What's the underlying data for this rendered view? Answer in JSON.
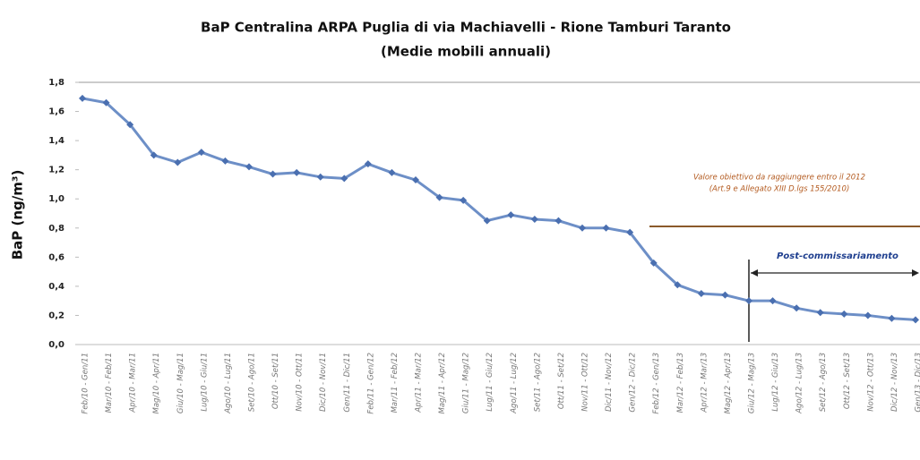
{
  "chart_data": {
    "type": "line",
    "title": "BaP Centralina ARPA Puglia di via Machiavelli - Rione Tamburi Taranto",
    "subtitle": "(Medie mobili annuali)",
    "y_label": "BaP (ng/m³)",
    "categories": [
      "Feb/10 - Gen/11",
      "Mar/10 - Feb/11",
      "Apr/10 - Mar/11",
      "Mag/10 - Apr/11",
      "Giu/10 - Mag/11",
      "Lug/10 - Giu/11",
      "Ago/10 - Lug/11",
      "Set/10 - Ago/11",
      "Ott/10 - Set/11",
      "Nov/10 - Ott/11",
      "Dic/10 - Nov/11",
      "Gen/11 - Dic/11",
      "Feb/11 - Gen/12",
      "Mar/11 - Feb/12",
      "Apr/11 - Mar/12",
      "Mag/11 - Apr/12",
      "Giu/11 - Mag/12",
      "Lug/11 - Giu/12",
      "Ago/11 - Lug/12",
      "Set/11 - Ago/12",
      "Ott/11 - Set/12",
      "Nov/11 - Ott/12",
      "Dic/11 - Nov/12",
      "Gen/12 - Dic/12",
      "Feb/12 - Gen/13",
      "Mar/12 - Feb/13",
      "Apr/12 - Mar/13",
      "Mag/12 - Apr/13",
      "Giu/12 - Mag/13",
      "Lug/12 - Giu/13",
      "Ago/12 - Lug/13",
      "Set/12 - Ago/13",
      "Ott/12 - Set/13",
      "Nov/12 - Ott/13",
      "Dic/12 - Nov/13",
      "Gen/13 - Dic/13"
    ],
    "values": [
      1.69,
      1.66,
      1.51,
      1.3,
      1.25,
      1.32,
      1.26,
      1.22,
      1.17,
      1.18,
      1.15,
      1.14,
      1.24,
      1.18,
      1.13,
      1.01,
      0.99,
      0.85,
      0.89,
      0.86,
      0.85,
      0.8,
      0.8,
      0.77,
      0.56,
      0.41,
      0.35,
      0.34,
      0.3,
      0.3,
      0.25,
      0.22,
      0.21,
      0.2,
      0.18,
      0.17
    ],
    "color": "#6d8fc7",
    "ylim": [
      0,
      1.8
    ],
    "yticks": [
      {
        "value": 0,
        "label": "0,0"
      },
      {
        "value": 0.2,
        "label": "0,2"
      },
      {
        "value": 0.4,
        "label": "0,4"
      },
      {
        "value": 0.6,
        "label": "0,6"
      },
      {
        "value": 0.8,
        "label": "0,8"
      },
      {
        "value": 1.0,
        "label": "1,0"
      },
      {
        "value": 1.2,
        "label": "1,2"
      },
      {
        "value": 1.4,
        "label": "1,4"
      },
      {
        "value": 1.6,
        "label": "1,6"
      },
      {
        "value": 1.8,
        "label": "1,8"
      }
    ],
    "grid": false,
    "annotations": [
      "Valore obiettivo da raggiungere entro il 2012",
      "(Art.9 e Allegato XIII D.lgs 155/2010)",
      "Post-commissariamento"
    ]
  }
}
